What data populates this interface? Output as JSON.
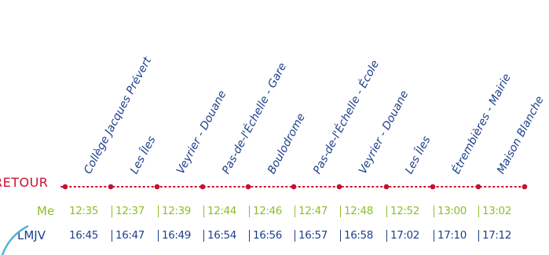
{
  "direction_label": "RETOUR",
  "stops": [
    "Collège Jacques Prévert",
    "Les Îles",
    "Veyrier - Douane",
    "Pas-de-l'Échelle - Gare",
    "Boulodrome",
    "Pas-de-l'Échelle - École",
    "Veyrier - Douane",
    "Les Îles",
    "Étrembières - Mairie",
    "Maison Blanche"
  ],
  "rows": [
    {
      "day_label": "Me",
      "times": [
        "12:35",
        "12:37",
        "12:39",
        "12:44",
        "12:46",
        "12:47",
        "12:48",
        "12:52",
        "13:00",
        "13:02"
      ]
    },
    {
      "day_label": "LMJV",
      "times": [
        "16:45",
        "16:47",
        "16:49",
        "16:54",
        "16:56",
        "16:57",
        "16:58",
        "17:02",
        "17:10",
        "17:12"
      ]
    }
  ],
  "colors": {
    "stop_text": "#1d3f8c",
    "route_line": "#c8102e",
    "me_row": "#8cbf26",
    "lmjv_row": "#1d3f8c",
    "separator_me": "#8cbf26",
    "separator_lmjv": "#1d3f8c"
  }
}
